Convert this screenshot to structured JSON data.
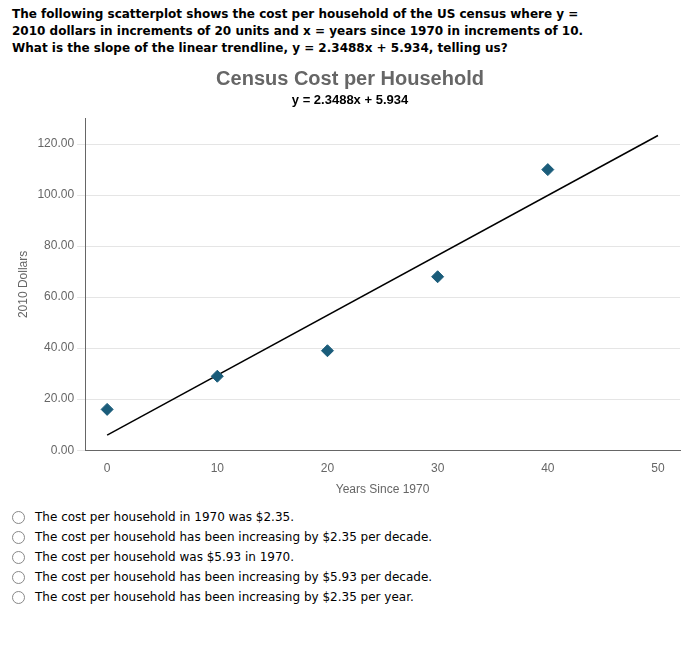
{
  "chart_data": {
    "type": "scatter",
    "title": "Census Cost per Household",
    "annotations": [
      "y = 2.3488x + 5.934"
    ],
    "header_lines": [
      "The following scatterplot shows the cost per household of the US census where y =",
      "2010 dollars in increments of 20 units and x = years since 1970 in increments of 10.",
      "What is the slope of the linear trendline, y = 2.3488x + 5.934, telling us?"
    ],
    "answer_options": [
      "The cost per household in 1970 was $2.35.",
      "The cost per household has been increasing by $2.35 per decade.",
      "The cost per household was $5.93 in 1970.",
      "The cost per household has been increasing by $5.93 per decade.",
      "The cost per household has been increasing by $2.35 per year."
    ],
    "xlabel": "Years Since 1970",
    "ylabel": "2010 Dollars",
    "series": [
      {
        "type": "scatter",
        "color": "#1a5c7a",
        "marker": "diamond",
        "x": [
          0,
          10,
          20,
          30,
          40
        ],
        "values": [
          16,
          29,
          39,
          68,
          110
        ]
      },
      {
        "type": "line",
        "color": "#000000",
        "line_style": "solid",
        "x": [
          0,
          50
        ],
        "values": [
          5.934,
          123.374
        ]
      }
    ],
    "xlim": [
      -2,
      52
    ],
    "ylim": [
      0,
      130
    ],
    "xticks": [
      0,
      10,
      20,
      30,
      40,
      50
    ],
    "yticks": [
      {
        "value": 0,
        "label": "0.00"
      },
      {
        "value": 20,
        "label": "20.00"
      },
      {
        "value": 40,
        "label": "40.00"
      },
      {
        "value": 60,
        "label": "60.00"
      },
      {
        "value": 80,
        "label": "80.00"
      },
      {
        "value": 100,
        "label": "100.00"
      },
      {
        "value": 120,
        "label": "120.00"
      }
    ],
    "grid": "y"
  }
}
